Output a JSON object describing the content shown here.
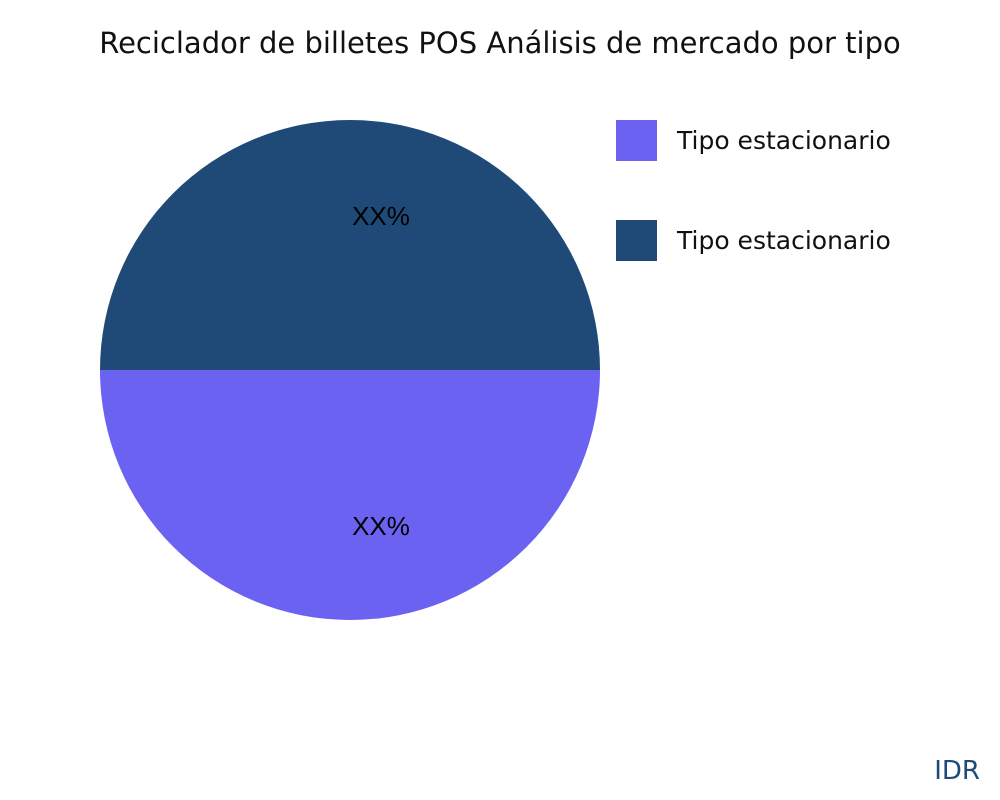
{
  "chart_data": {
    "type": "pie",
    "title": "Reciclador de billetes POS Análisis de mercado por tipo",
    "slices": [
      {
        "name": "Tipo estacionario",
        "value": 50,
        "label": "XX%",
        "color": "#6c62f1"
      },
      {
        "name": "Tipo estacionario",
        "value": 50,
        "label": "XX%",
        "color": "#1f4a78"
      }
    ],
    "legend_position": "right"
  },
  "watermark": "IDR"
}
